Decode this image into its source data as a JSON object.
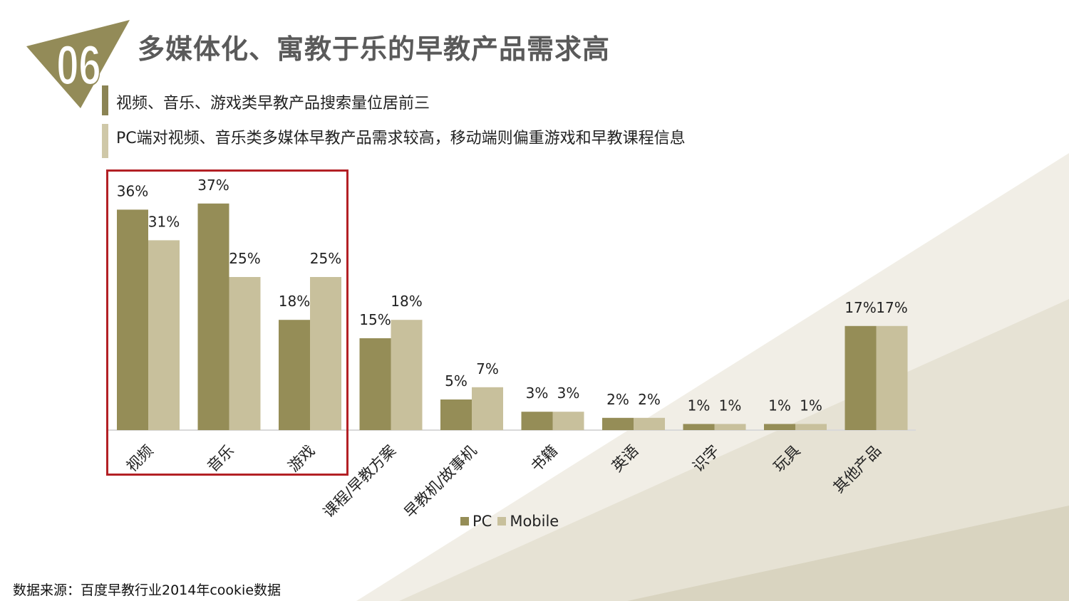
{
  "slide": {
    "number": "06",
    "title": "多媒体化、寓教于乐的早教产品需求高",
    "bullets": [
      "视频、音乐、游戏类早教产品搜索量位居前三",
      "PC端对视频、音乐类多媒体早教产品需求较高，移动端则偏重游戏和早教课程信息"
    ],
    "source": "数据来源：百度早教行业2014年cookie数据",
    "colors": {
      "pc": "#958d57",
      "mobile": "#c8c09c",
      "highlight": "#b32025",
      "bullet1": "#8b8454",
      "bullet2": "#cfc8a8"
    }
  },
  "chart_data": {
    "type": "bar",
    "categories": [
      "视频",
      "音乐",
      "游戏",
      "课程/早教方案",
      "早教机/故事机",
      "书籍",
      "英语",
      "识字",
      "玩具",
      "其他产品"
    ],
    "series": [
      {
        "name": "PC",
        "values": [
          36,
          37,
          18,
          15,
          5,
          3,
          2,
          1,
          1,
          17
        ],
        "labels": [
          "36%",
          "37%",
          "18%",
          "15%",
          "5%",
          "3%",
          "2%",
          "1%",
          "1%",
          "17%"
        ]
      },
      {
        "name": "Mobile",
        "values": [
          31,
          25,
          25,
          18,
          7,
          3,
          2,
          1,
          1,
          17
        ],
        "labels": [
          "31%",
          "25%",
          "25%",
          "18%",
          "7%",
          "3%",
          "2%",
          "1%",
          "1%",
          "17%"
        ]
      }
    ],
    "legend_position": "bottom",
    "grid": false,
    "highlighted_categories": [
      "视频",
      "音乐",
      "游戏"
    ]
  }
}
